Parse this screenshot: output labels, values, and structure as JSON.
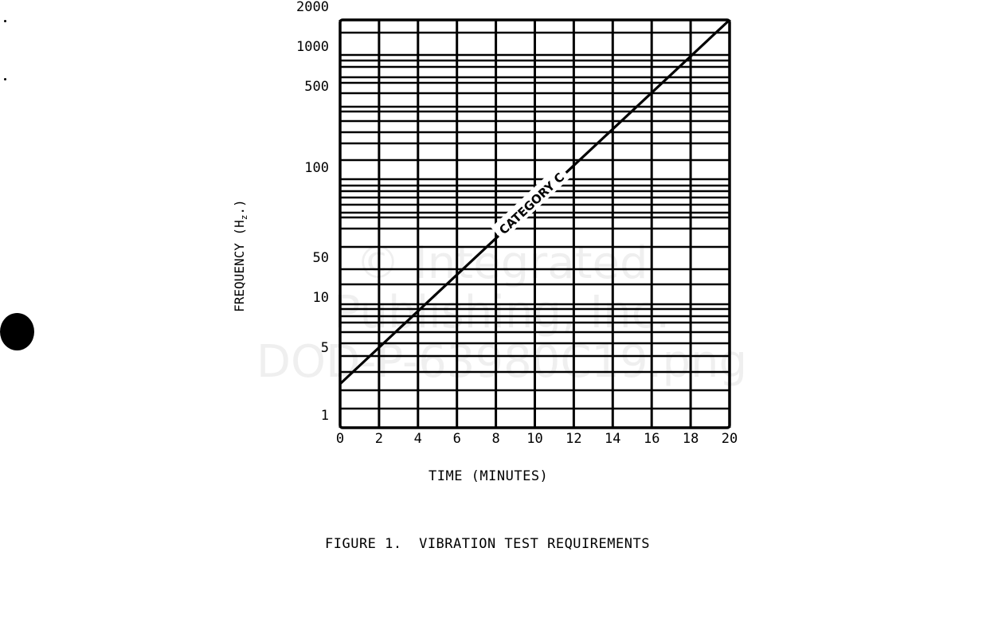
{
  "chart_data": {
    "type": "line",
    "title": "FIGURE 1.  VIBRATION TEST REQUIREMENTS",
    "xlabel": "TIME (MINUTES)",
    "ylabel": "FREQUENCY (Hz.)",
    "ylabel_parts": {
      "main": "FREQUENCY (H",
      "sub": "z",
      "end": ".)"
    },
    "x_ticks": [
      "0",
      "2",
      "4",
      "6",
      "8",
      "10",
      "12",
      "14",
      "16",
      "18",
      "20"
    ],
    "y_ticks": [
      "1",
      "5",
      "10",
      "50",
      "100",
      "500",
      "1000",
      "2000"
    ],
    "xlim": [
      0,
      20
    ],
    "ylim": [
      1,
      2000
    ],
    "y_scale": "log-like (non-uniform)",
    "grid": true,
    "series": [
      {
        "name": "CATEGORY C",
        "x": [
          0,
          20
        ],
        "y": [
          2.5,
          2000
        ]
      }
    ]
  },
  "watermark": "© Integrated Publishing, Inc. DOD-P-63980C19.png"
}
